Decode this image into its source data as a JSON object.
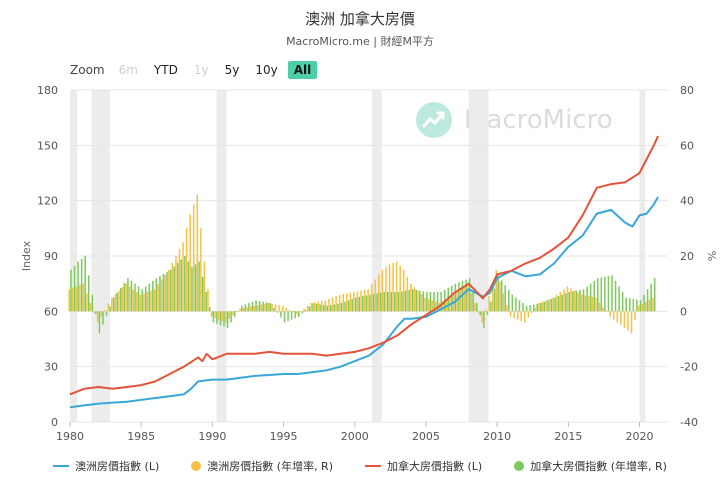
{
  "header": {
    "title": "澳洲 加拿大房價",
    "subtitle": "MacroMicro.me | 財經M平方"
  },
  "zoom": {
    "label": "Zoom",
    "buttons": [
      {
        "label": "6m",
        "state": "disabled"
      },
      {
        "label": "YTD",
        "state": "normal"
      },
      {
        "label": "1y",
        "state": "disabled"
      },
      {
        "label": "5y",
        "state": "normal"
      },
      {
        "label": "10y",
        "state": "normal"
      },
      {
        "label": "All",
        "state": "active"
      }
    ]
  },
  "watermark": {
    "text": "MacroMicro"
  },
  "colors": {
    "au_line": "#3ba7d8",
    "au_bar": "#f5c243",
    "ca_line": "#e3553a",
    "ca_bar": "#7ec95d",
    "recession": "#ececec"
  },
  "chart_data": {
    "type": "line",
    "y_left": {
      "title": "Index",
      "range": [
        0,
        180
      ],
      "ticks": [
        0,
        30,
        60,
        90,
        120,
        150,
        180
      ]
    },
    "y_right": {
      "title": "%",
      "range": [
        -40,
        80
      ],
      "ticks": [
        -40,
        -20,
        0,
        20,
        40,
        60,
        80
      ]
    },
    "x_axis": {
      "range": [
        1980,
        2022
      ],
      "ticks": [
        1980,
        1985,
        1990,
        1995,
        2000,
        2005,
        2010,
        2015,
        2020
      ]
    },
    "recessions": [
      [
        1980.0,
        1980.5
      ],
      [
        1981.5,
        1982.8
      ],
      [
        1990.3,
        1991.0
      ],
      [
        2001.2,
        2001.9
      ],
      [
        2008.0,
        2009.4
      ],
      [
        2020.0,
        2020.4
      ]
    ],
    "series": [
      {
        "name": "澳洲房價指數 (L)",
        "type": "line",
        "axis": "left",
        "x": [
          1980,
          1981,
          1982,
          1983,
          1984,
          1985,
          1986,
          1987,
          1988,
          1988.5,
          1989,
          1990,
          1991,
          1992,
          1993,
          1994,
          1995,
          1996,
          1997,
          1998,
          1999,
          2000,
          2001,
          2002,
          2003,
          2003.5,
          2004,
          2005,
          2006,
          2007,
          2008,
          2009,
          2009.5,
          2010,
          2011,
          2012,
          2013,
          2014,
          2015,
          2016,
          2017,
          2018,
          2019,
          2019.5,
          2020,
          2020.5,
          2021,
          2021.3
        ],
        "y": [
          8,
          9,
          10,
          10.5,
          11,
          12,
          13,
          14,
          15,
          18,
          22,
          23,
          23,
          24,
          25,
          25.5,
          26,
          26,
          27,
          28,
          30,
          33,
          36,
          42,
          52,
          56,
          56,
          57,
          61,
          65,
          72,
          68,
          70,
          78,
          82,
          79,
          80,
          86,
          95,
          101,
          113,
          115,
          108,
          106,
          112,
          113,
          118,
          122
        ]
      },
      {
        "name": "澳洲房價指數 (年增率, R)",
        "type": "bar",
        "axis": "right",
        "x": [
          1980,
          1981,
          1982,
          1983,
          1984,
          1985,
          1986,
          1987,
          1988,
          1988.5,
          1989,
          1989.5,
          1990,
          1991,
          1992,
          1993,
          1994,
          1995,
          1996,
          1997,
          1998,
          1999,
          2000,
          2001,
          2002,
          2002.5,
          2003,
          2003.5,
          2004,
          2005,
          2006,
          2007,
          2008,
          2009,
          2010,
          2011,
          2012,
          2013,
          2014,
          2015,
          2016,
          2017,
          2018,
          2019,
          2019.5,
          2020,
          2021
        ],
        "y": [
          8,
          10,
          -4,
          5,
          10,
          6,
          8,
          15,
          25,
          35,
          42,
          18,
          -2,
          -4,
          1,
          2,
          3,
          2,
          -1,
          3,
          4,
          6,
          7,
          8,
          15,
          17,
          18,
          15,
          10,
          5,
          3,
          6,
          10,
          -4,
          15,
          -2,
          -4,
          3,
          5,
          9,
          6,
          5,
          -2,
          -6,
          -8,
          2,
          5
        ]
      },
      {
        "name": "加拿大房價指數 (L)",
        "type": "line",
        "axis": "left",
        "x": [
          1980,
          1981,
          1982,
          1983,
          1984,
          1985,
          1986,
          1987,
          1988,
          1989,
          1989.3,
          1989.6,
          1990,
          1991,
          1992,
          1993,
          1994,
          1995,
          1996,
          1997,
          1998,
          1999,
          2000,
          2001,
          2002,
          2003,
          2004,
          2005,
          2006,
          2007,
          2008,
          2009,
          2009.5,
          2010,
          2011,
          2012,
          2013,
          2014,
          2015,
          2016,
          2017,
          2018,
          2019,
          2020,
          2021,
          2021.3
        ],
        "y": [
          15,
          18,
          19,
          18,
          19,
          20,
          22,
          26,
          30,
          35,
          33,
          37,
          34,
          37,
          37,
          37,
          38,
          37,
          37,
          37,
          36,
          37,
          38,
          40,
          43,
          47,
          53,
          58,
          63,
          70,
          75,
          67,
          72,
          80,
          82,
          86,
          89,
          94,
          100,
          112,
          127,
          129,
          130,
          135,
          150,
          155
        ]
      },
      {
        "name": "加拿大房價指數 (年增率, R)",
        "type": "bar",
        "axis": "right",
        "x": [
          1980,
          1980.5,
          1981,
          1982,
          1983,
          1984,
          1985,
          1986,
          1987,
          1988,
          1988.5,
          1989,
          1990,
          1991,
          1992,
          1993,
          1994,
          1995,
          1996,
          1997,
          1998,
          1999,
          2000,
          2001,
          2002,
          2003,
          2004,
          2005,
          2006,
          2007,
          2008,
          2009,
          2010,
          2011,
          2012,
          2013,
          2014,
          2015,
          2016,
          2017,
          2018,
          2019,
          2020,
          2021
        ],
        "y": [
          15,
          18,
          20,
          -8,
          5,
          12,
          8,
          12,
          15,
          20,
          16,
          18,
          -4,
          -6,
          2,
          4,
          3,
          -4,
          -2,
          3,
          2,
          3,
          5,
          6,
          7,
          7,
          8,
          7,
          7,
          10,
          12,
          -6,
          13,
          6,
          2,
          3,
          5,
          7,
          8,
          12,
          13,
          5,
          4,
          12
        ]
      }
    ]
  },
  "legend": [
    {
      "label": "澳洲房價指數 (L)",
      "kind": "line",
      "color": "#3ba7d8"
    },
    {
      "label": "澳洲房價指數 (年增率, R)",
      "kind": "dot",
      "color": "#f5c243"
    },
    {
      "label": "加拿大房價指數 (L)",
      "kind": "line",
      "color": "#e3553a"
    },
    {
      "label": "加拿大房價指數 (年增率, R)",
      "kind": "dot",
      "color": "#7ec95d"
    }
  ]
}
